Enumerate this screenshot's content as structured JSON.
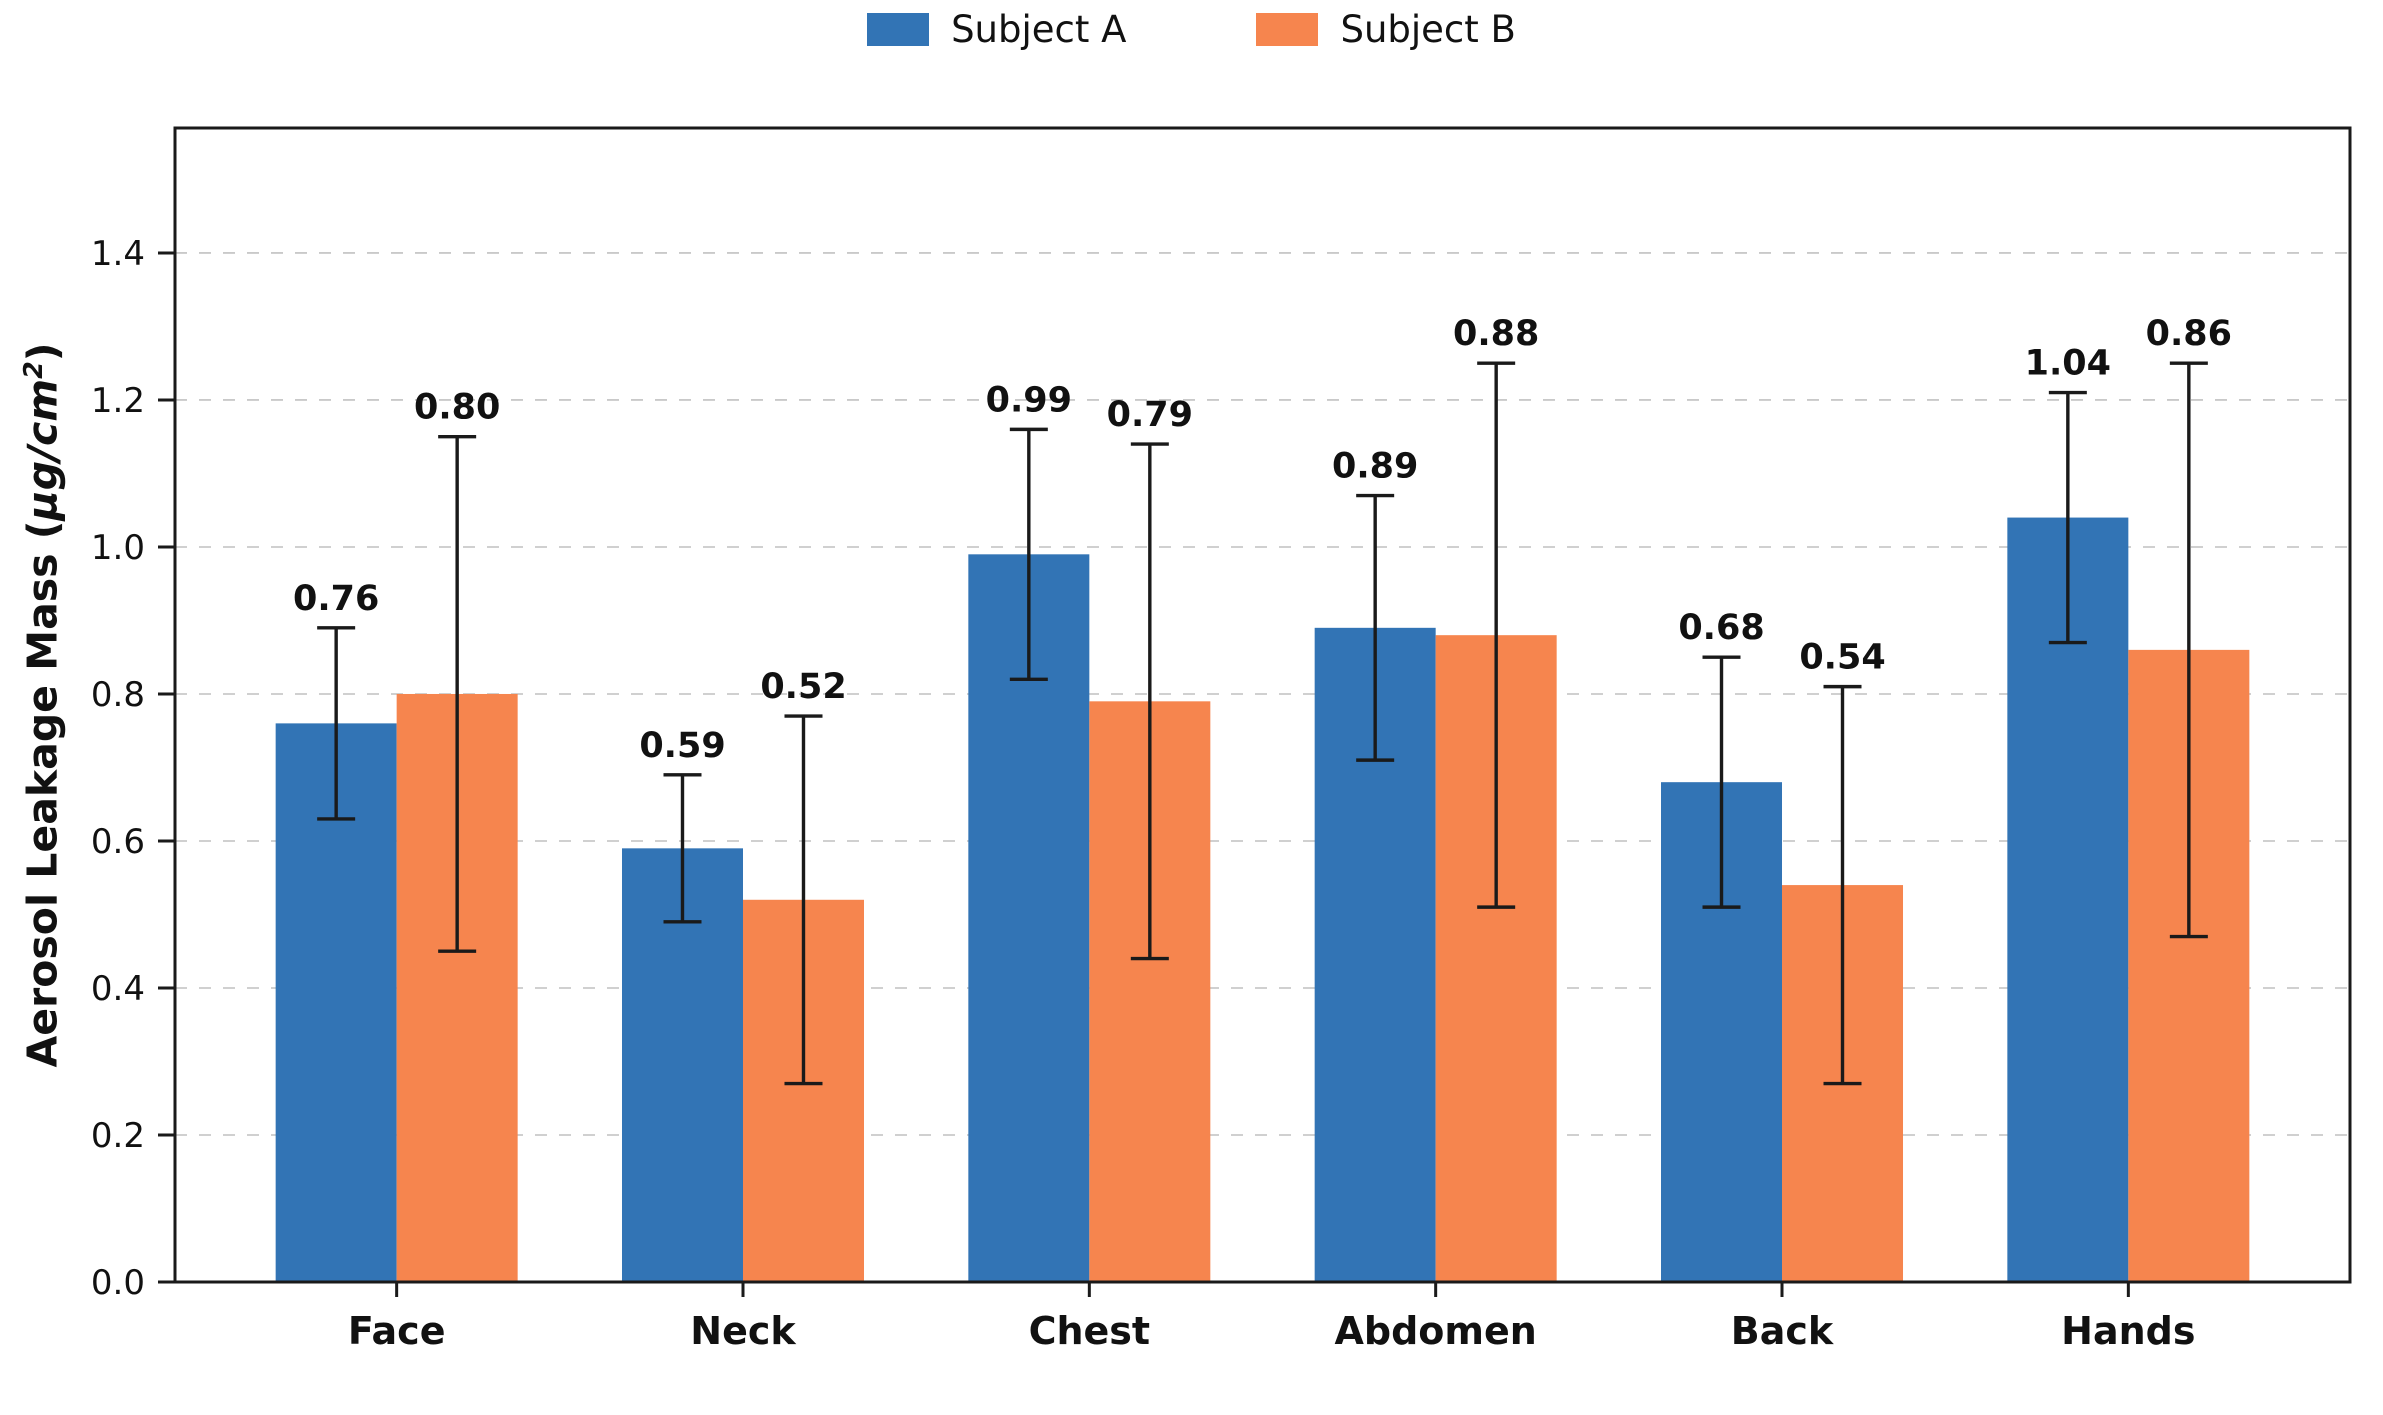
{
  "figure": {
    "background": "#ffffff"
  },
  "chart_data": {
    "type": "bar",
    "title": "",
    "xlabel": "",
    "ylabel": "Aerosol Leakage Mass (µg/cm²)",
    "ylabel_parts": {
      "prefix": "Aerosol Leakage Mass (",
      "unit": "µg/cm",
      "sup": "2",
      "suffix": ")"
    },
    "categories": [
      "Face",
      "Neck",
      "Chest",
      "Abdomen",
      "Back",
      "Hands"
    ],
    "series": [
      {
        "name": "Subject A",
        "color": "#3274B5",
        "values": [
          0.76,
          0.59,
          0.99,
          0.89,
          0.68,
          1.04
        ],
        "errors": [
          0.13,
          0.1,
          0.17,
          0.18,
          0.17,
          0.17
        ]
      },
      {
        "name": "Subject B",
        "color": "#F6854E",
        "values": [
          0.8,
          0.52,
          0.79,
          0.88,
          0.54,
          0.86
        ],
        "errors": [
          0.35,
          0.25,
          0.35,
          0.37,
          0.27,
          0.39
        ]
      }
    ],
    "value_label_format": "0.00",
    "yticks": [
      0.0,
      0.2,
      0.4,
      0.6,
      0.8,
      1.0,
      1.2,
      1.4
    ],
    "ylim": [
      0,
      1.57
    ],
    "grid": "horizontal-dashed",
    "grid_color": "#c9c9c9",
    "error_bar_color": "#1a1a1a",
    "legend_position": "top-center"
  }
}
